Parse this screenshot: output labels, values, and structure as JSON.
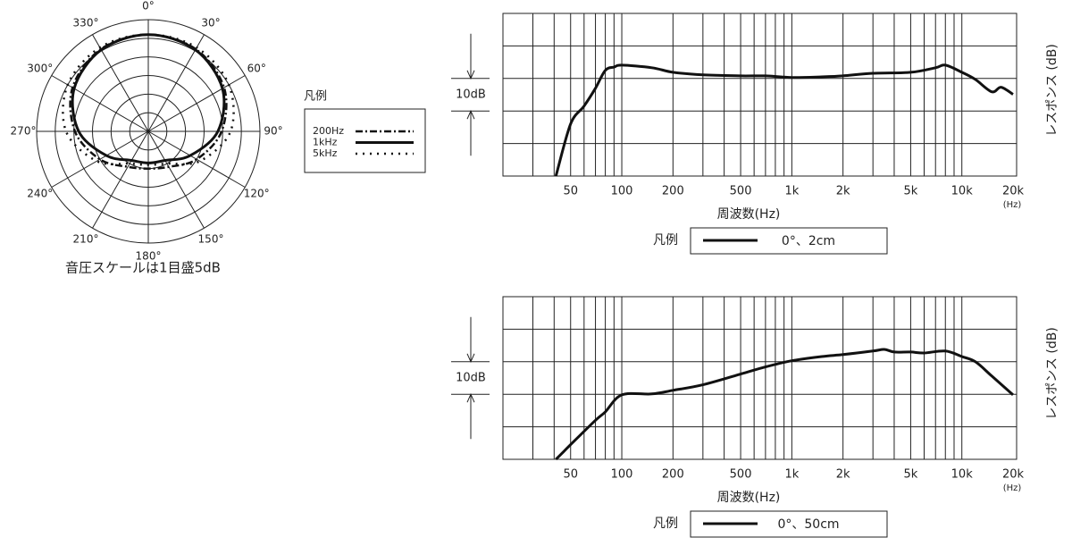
{
  "chart_data": [
    {
      "type": "polar",
      "caption": "音圧スケールは1目盛5dB",
      "legend_title": "凡例",
      "theta": [
        0,
        30,
        60,
        90,
        120,
        150,
        180,
        210,
        240,
        270,
        300,
        330
      ],
      "thetaticks": [
        {
          "value": 0,
          "label": "0°"
        },
        {
          "value": 30,
          "label": "30°"
        },
        {
          "value": 60,
          "label": "60°"
        },
        {
          "value": 90,
          "label": "90°"
        },
        {
          "value": 120,
          "label": "120°"
        },
        {
          "value": 150,
          "label": "150°"
        },
        {
          "value": 180,
          "label": "180°"
        },
        {
          "value": 210,
          "label": "210°"
        },
        {
          "value": 240,
          "label": "240°"
        },
        {
          "value": 270,
          "label": "270°"
        },
        {
          "value": 300,
          "label": "300°"
        },
        {
          "value": 330,
          "label": "330°"
        }
      ],
      "rlim": [
        -30,
        0
      ],
      "rticks": [
        -25,
        -20,
        -15,
        -10,
        -5,
        0
      ],
      "series": [
        {
          "name": "200Hz",
          "color": "#111",
          "linestyle": "dash-dot",
          "values": [
            -4,
            -4.5,
            -6.5,
            -10.3,
            -15,
            -19,
            -20,
            -19,
            -15,
            -10.3,
            -6.5,
            -4.5
          ]
        },
        {
          "name": "1kHz",
          "color": "#111",
          "linestyle": "solid",
          "values": [
            -4,
            -4.7,
            -7,
            -11.3,
            -17,
            -21,
            -21.5,
            -21,
            -17,
            -11.3,
            -7,
            -4.7
          ]
        },
        {
          "name": "5kHz",
          "color": "#111",
          "linestyle": "dotted",
          "values": [
            -4,
            -4,
            -5,
            -7.9,
            -14,
            -20,
            -21,
            -20,
            -14,
            -7.9,
            -5,
            -4
          ]
        }
      ]
    },
    {
      "type": "line",
      "log_x": true,
      "x_label": "周波数(Hz)",
      "x_unit": "(Hz)",
      "y_label": "レスポンス (dB)",
      "scale_note": "10dB",
      "scale_step": 10,
      "legend_title": "凡例",
      "xlim": [
        20,
        20000
      ],
      "ylim": [
        -30,
        20
      ],
      "xticks": [
        50,
        100,
        200,
        500,
        {
          "value": 1000,
          "label": "1k"
        },
        {
          "value": 2000,
          "label": "2k"
        },
        {
          "value": 5000,
          "label": "5k"
        },
        {
          "value": 10000,
          "label": "10k"
        },
        {
          "value": 20000,
          "label": "20k"
        }
      ],
      "xgrid": [
        30,
        40,
        50,
        60,
        70,
        80,
        90,
        100,
        200,
        300,
        400,
        500,
        600,
        700,
        800,
        900,
        1000,
        2000,
        3000,
        4000,
        5000,
        6000,
        7000,
        8000,
        9000,
        10000
      ],
      "ygrid": [
        -20,
        -10,
        0,
        10
      ],
      "series": [
        {
          "name": "0°、2cm",
          "color": "#111",
          "x": [
            41,
            50,
            60,
            70,
            80,
            90,
            100,
            150,
            200,
            300,
            500,
            700,
            1000,
            1500,
            2000,
            3000,
            5000,
            7000,
            8000,
            10000,
            12000,
            15000,
            17000,
            20000
          ],
          "values": [
            -30,
            -14,
            -8.5,
            -3,
            2.5,
            3.5,
            4.1,
            3.3,
            1.9,
            1.1,
            0.8,
            0.8,
            0.3,
            0.5,
            0.8,
            1.6,
            1.9,
            3.3,
            4.1,
            1.9,
            -0.3,
            -4.1,
            -2.7,
            -4.9
          ]
        }
      ]
    },
    {
      "type": "line",
      "log_x": true,
      "x_label": "周波数(Hz)",
      "x_unit": "(Hz)",
      "y_label": "レスポンス (dB)",
      "scale_note": "10dB",
      "scale_step": 10,
      "legend_title": "凡例",
      "xlim": [
        20,
        20000
      ],
      "ylim": [
        -30,
        20
      ],
      "xticks": [
        50,
        100,
        200,
        500,
        {
          "value": 1000,
          "label": "1k"
        },
        {
          "value": 2000,
          "label": "2k"
        },
        {
          "value": 5000,
          "label": "5k"
        },
        {
          "value": 10000,
          "label": "10k"
        },
        {
          "value": 20000,
          "label": "20k"
        }
      ],
      "xgrid": [
        30,
        40,
        50,
        60,
        70,
        80,
        90,
        100,
        200,
        300,
        400,
        500,
        600,
        700,
        800,
        900,
        1000,
        2000,
        3000,
        4000,
        5000,
        6000,
        7000,
        8000,
        9000,
        10000
      ],
      "ygrid": [
        -20,
        -10,
        0,
        10
      ],
      "series": [
        {
          "name": "0°、50cm",
          "color": "#111",
          "x": [
            41,
            50,
            70,
            80,
            100,
            150,
            200,
            300,
            500,
            700,
            1000,
            1500,
            2000,
            3000,
            3500,
            4000,
            5000,
            6000,
            8000,
            10000,
            12000,
            15000,
            20000
          ],
          "values": [
            -30,
            -25.5,
            -18,
            -15.4,
            -10.2,
            -9.9,
            -8.8,
            -7.1,
            -3.8,
            -1.6,
            0.3,
            1.6,
            2.2,
            3.3,
            3.8,
            3,
            3,
            2.7,
            3.3,
            1.6,
            0,
            -4.4,
            -10.2
          ]
        }
      ]
    }
  ]
}
